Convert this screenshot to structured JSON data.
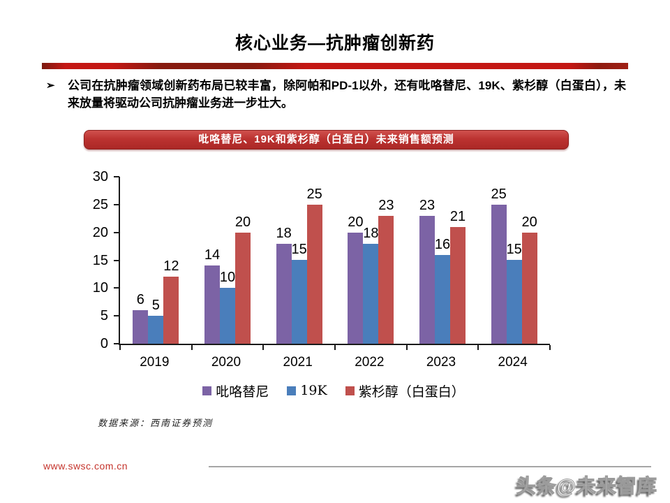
{
  "slide": {
    "title": "核心业务—抗肿瘤创新药",
    "bullet": {
      "marker": "➢",
      "text": "公司在抗肿瘤领域创新药布局已较丰富，除阿帕和PD-1以外，还有吡咯替尼、19K、紫杉醇（白蛋白），未来放量将驱动公司抗肿瘤业务进一步壮大。"
    }
  },
  "chart_banner": "吡咯替尼、19K和紫杉醇（白蛋白）未来销售额预测",
  "chart_data": {
    "type": "bar",
    "title": "吡咯替尼、19K和紫杉醇（白蛋白）未来销售额预测",
    "categories": [
      "2019",
      "2020",
      "2021",
      "2022",
      "2023",
      "2024"
    ],
    "series": [
      {
        "name": "吡咯替尼",
        "color": "#7C63A5",
        "values": [
          6,
          14,
          18,
          20,
          23,
          25
        ]
      },
      {
        "name": "19K",
        "color": "#4A7EBB",
        "values": [
          5,
          10,
          15,
          18,
          16,
          15
        ]
      },
      {
        "name": "紫杉醇（白蛋白）",
        "color": "#C0504D",
        "values": [
          12,
          20,
          25,
          23,
          21,
          20
        ]
      }
    ],
    "ylim": [
      0,
      30
    ],
    "yticks": [
      0,
      5,
      10,
      15,
      20,
      25,
      30
    ],
    "xlabel": "",
    "ylabel": "",
    "grid": false,
    "data_labels": true,
    "legend_position": "bottom"
  },
  "source_note": "数据来源：西南证券预测",
  "footer": {
    "url": "www.swsc.com.cn"
  },
  "watermark": "头条@未来智库",
  "colors": {
    "divider_red": "#C41714",
    "banner_red": "#BC3331",
    "axis_black": "#1A1A1A",
    "url_red": "#C5342C"
  }
}
